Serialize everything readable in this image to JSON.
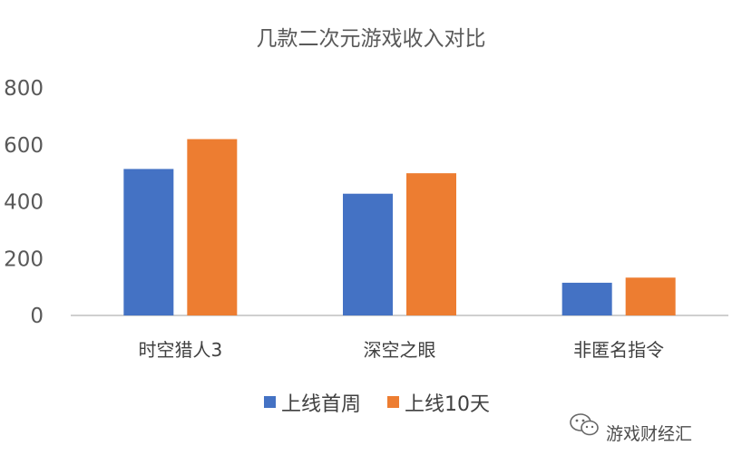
{
  "chart_data": {
    "type": "bar",
    "title": "几款二次元游戏收入对比",
    "categories": [
      "时空猎人3",
      "深空之眼",
      "非匿名指令"
    ],
    "series": [
      {
        "name": "上线首周",
        "values": [
          515,
          428,
          115
        ]
      },
      {
        "name": "上线10天",
        "values": [
          620,
          500,
          133
        ]
      }
    ],
    "ylim": [
      0,
      800
    ],
    "yticks": [
      0,
      200,
      400,
      600,
      800
    ],
    "xlabel": "",
    "ylabel": "",
    "grid": false,
    "legend": "bottom"
  },
  "colors": {
    "series": [
      "#4472C4",
      "#ED7D31"
    ],
    "text": "#595959",
    "axis": "#BFBFBF"
  },
  "watermark": {
    "icon": "wechat-icon",
    "text": "游戏财经汇"
  }
}
